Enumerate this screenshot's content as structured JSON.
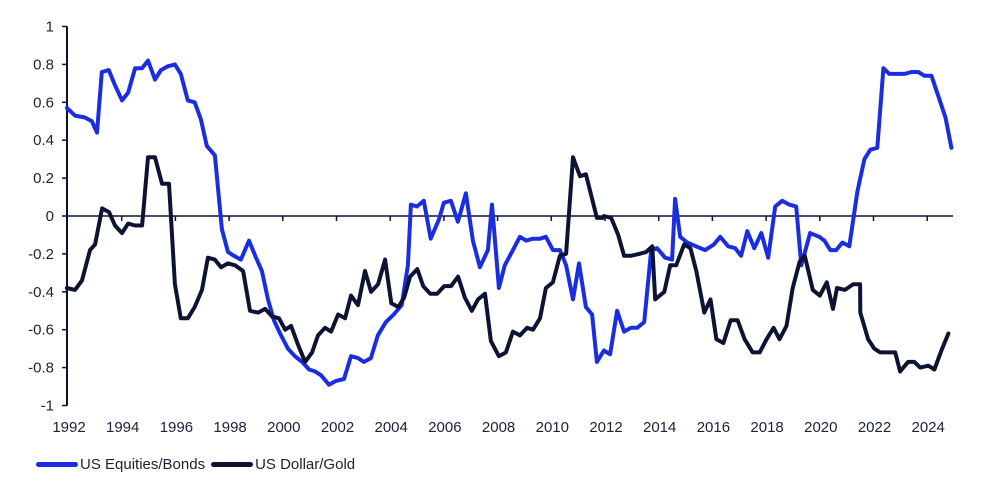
{
  "chart_data": {
    "type": "line",
    "title": "",
    "xlabel": "",
    "ylabel": "",
    "xlim": [
      1992,
      2025
    ],
    "ylim": [
      -1,
      1
    ],
    "yticks": [
      1,
      0.8,
      0.6,
      0.4,
      0.2,
      0,
      -0.2,
      -0.4,
      -0.6,
      -0.8,
      -1
    ],
    "ytick_labels": [
      "1",
      "0.8",
      "0.6",
      "0.4",
      "0.2",
      "0",
      "-0.2",
      "-0.4",
      "-0.6",
      "-0.8",
      "-1"
    ],
    "xtick_labels": [
      "1992",
      "1994",
      "1996",
      "1998",
      "2000",
      "2002",
      "2004",
      "2006",
      "2008",
      "2010",
      "2012",
      "2014",
      "2016",
      "2018",
      "2020",
      "2022",
      "2024"
    ],
    "xticks": [
      1992,
      1994,
      1996,
      1998,
      2000,
      2002,
      2004,
      2006,
      2008,
      2010,
      2012,
      2014,
      2016,
      2018,
      2020,
      2022,
      2024
    ],
    "grid": false,
    "zero_line": true,
    "legend_position": "bottom-left",
    "series": [
      {
        "name": "US Equities/Bonds",
        "color": "#1a2ee0",
        "points": [
          [
            1991.96,
            0.57
          ],
          [
            1992.26,
            0.53
          ],
          [
            1992.63,
            0.52
          ],
          [
            1992.89,
            0.5
          ],
          [
            1993.08,
            0.44
          ],
          [
            1993.26,
            0.76
          ],
          [
            1993.52,
            0.77
          ],
          [
            1993.75,
            0.69
          ],
          [
            1994.01,
            0.61
          ],
          [
            1994.24,
            0.65
          ],
          [
            1994.5,
            0.78
          ],
          [
            1994.76,
            0.78
          ],
          [
            1994.98,
            0.82
          ],
          [
            1995.24,
            0.72
          ],
          [
            1995.46,
            0.77
          ],
          [
            1995.72,
            0.79
          ],
          [
            1995.98,
            0.8
          ],
          [
            1996.2,
            0.75
          ],
          [
            1996.46,
            0.61
          ],
          [
            1996.72,
            0.6
          ],
          [
            1996.95,
            0.51
          ],
          [
            1997.17,
            0.37
          ],
          [
            1997.47,
            0.32
          ],
          [
            1997.73,
            -0.07
          ],
          [
            1997.96,
            -0.19
          ],
          [
            1998.18,
            -0.21
          ],
          [
            1998.44,
            -0.23
          ],
          [
            1998.74,
            -0.13
          ],
          [
            1999.0,
            -0.22
          ],
          [
            1999.22,
            -0.29
          ],
          [
            1999.45,
            -0.44
          ],
          [
            1999.67,
            -0.55
          ],
          [
            1999.9,
            -0.62
          ],
          [
            2000.19,
            -0.7
          ],
          [
            2000.45,
            -0.74
          ],
          [
            2000.72,
            -0.77
          ],
          [
            2000.98,
            -0.81
          ],
          [
            2001.2,
            -0.82
          ],
          [
            2001.42,
            -0.84
          ],
          [
            2001.72,
            -0.89
          ],
          [
            2001.98,
            -0.87
          ],
          [
            2002.28,
            -0.86
          ],
          [
            2002.54,
            -0.74
          ],
          [
            2002.8,
            -0.75
          ],
          [
            2003.02,
            -0.77
          ],
          [
            2003.28,
            -0.75
          ],
          [
            2003.54,
            -0.63
          ],
          [
            2003.84,
            -0.56
          ],
          [
            2004.13,
            -0.52
          ],
          [
            2004.43,
            -0.47
          ],
          [
            2004.66,
            -0.26
          ],
          [
            2004.77,
            0.06
          ],
          [
            2004.99,
            0.05
          ],
          [
            2005.25,
            0.08
          ],
          [
            2005.51,
            -0.12
          ],
          [
            2005.81,
            -0.02
          ],
          [
            2006.0,
            0.07
          ],
          [
            2006.26,
            0.08
          ],
          [
            2006.52,
            -0.03
          ],
          [
            2006.82,
            0.12
          ],
          [
            2007.08,
            -0.13
          ],
          [
            2007.34,
            -0.27
          ],
          [
            2007.64,
            -0.18
          ],
          [
            2007.79,
            0.06
          ],
          [
            2008.05,
            -0.38
          ],
          [
            2008.27,
            -0.26
          ],
          [
            2008.57,
            -0.18
          ],
          [
            2008.83,
            -0.11
          ],
          [
            2009.06,
            -0.13
          ],
          [
            2009.32,
            -0.12
          ],
          [
            2009.58,
            -0.12
          ],
          [
            2009.8,
            -0.11
          ],
          [
            2010.06,
            -0.18
          ],
          [
            2010.32,
            -0.18
          ],
          [
            2010.55,
            -0.26
          ],
          [
            2010.81,
            -0.44
          ],
          [
            2011.03,
            -0.25
          ],
          [
            2011.29,
            -0.48
          ],
          [
            2011.52,
            -0.52
          ],
          [
            2011.7,
            -0.77
          ],
          [
            2011.96,
            -0.71
          ],
          [
            2012.19,
            -0.73
          ],
          [
            2012.45,
            -0.5
          ],
          [
            2012.71,
            -0.61
          ],
          [
            2012.97,
            -0.59
          ],
          [
            2013.2,
            -0.59
          ],
          [
            2013.46,
            -0.56
          ],
          [
            2013.72,
            -0.18
          ],
          [
            2013.94,
            -0.17
          ],
          [
            2014.24,
            -0.22
          ],
          [
            2014.5,
            -0.23
          ],
          [
            2014.61,
            0.09
          ],
          [
            2014.8,
            -0.11
          ],
          [
            2015.06,
            -0.14
          ],
          [
            2015.39,
            -0.16
          ],
          [
            2015.73,
            -0.18
          ],
          [
            2016.06,
            -0.15
          ],
          [
            2016.29,
            -0.11
          ],
          [
            2016.59,
            -0.16
          ],
          [
            2016.85,
            -0.17
          ],
          [
            2017.07,
            -0.21
          ],
          [
            2017.3,
            -0.08
          ],
          [
            2017.56,
            -0.17
          ],
          [
            2017.82,
            -0.09
          ],
          [
            2018.08,
            -0.22
          ],
          [
            2018.34,
            0.05
          ],
          [
            2018.6,
            0.08
          ],
          [
            2018.86,
            0.06
          ],
          [
            2019.12,
            0.05
          ],
          [
            2019.31,
            -0.26
          ],
          [
            2019.64,
            -0.09
          ],
          [
            2019.98,
            -0.11
          ],
          [
            2020.17,
            -0.13
          ],
          [
            2020.39,
            -0.18
          ],
          [
            2020.61,
            -0.18
          ],
          [
            2020.84,
            -0.14
          ],
          [
            2021.1,
            -0.16
          ],
          [
            2021.4,
            0.13
          ],
          [
            2021.66,
            0.3
          ],
          [
            2021.88,
            0.35
          ],
          [
            2022.14,
            0.36
          ],
          [
            2022.37,
            0.78
          ],
          [
            2022.59,
            0.75
          ],
          [
            2022.85,
            0.75
          ],
          [
            2023.15,
            0.75
          ],
          [
            2023.41,
            0.76
          ],
          [
            2023.67,
            0.76
          ],
          [
            2023.9,
            0.74
          ],
          [
            2024.16,
            0.74
          ],
          [
            2024.42,
            0.63
          ],
          [
            2024.68,
            0.52
          ],
          [
            2024.9,
            0.36
          ]
        ]
      },
      {
        "name": "US Dollar/Gold",
        "color": "#0d1433",
        "points": [
          [
            1991.96,
            -0.38
          ],
          [
            1992.26,
            -0.39
          ],
          [
            1992.52,
            -0.34
          ],
          [
            1992.82,
            -0.18
          ],
          [
            1993.01,
            -0.15
          ],
          [
            1993.27,
            0.04
          ],
          [
            1993.53,
            0.02
          ],
          [
            1993.75,
            -0.05
          ],
          [
            1994.01,
            -0.09
          ],
          [
            1994.24,
            -0.04
          ],
          [
            1994.5,
            -0.05
          ],
          [
            1994.76,
            -0.05
          ],
          [
            1994.98,
            0.31
          ],
          [
            1995.24,
            0.31
          ],
          [
            1995.5,
            0.17
          ],
          [
            1995.76,
            0.17
          ],
          [
            1995.98,
            -0.36
          ],
          [
            1996.2,
            -0.54
          ],
          [
            1996.46,
            -0.54
          ],
          [
            1996.72,
            -0.48
          ],
          [
            1996.99,
            -0.39
          ],
          [
            1997.21,
            -0.22
          ],
          [
            1997.47,
            -0.23
          ],
          [
            1997.7,
            -0.27
          ],
          [
            1997.96,
            -0.25
          ],
          [
            1998.22,
            -0.26
          ],
          [
            1998.52,
            -0.29
          ],
          [
            1998.78,
            -0.5
          ],
          [
            1999.08,
            -0.51
          ],
          [
            1999.34,
            -0.49
          ],
          [
            1999.6,
            -0.53
          ],
          [
            1999.86,
            -0.54
          ],
          [
            2000.09,
            -0.6
          ],
          [
            2000.31,
            -0.58
          ],
          [
            2000.57,
            -0.68
          ],
          [
            2000.83,
            -0.77
          ],
          [
            2001.09,
            -0.72
          ],
          [
            2001.31,
            -0.63
          ],
          [
            2001.57,
            -0.59
          ],
          [
            2001.8,
            -0.61
          ],
          [
            2002.06,
            -0.52
          ],
          [
            2002.32,
            -0.54
          ],
          [
            2002.54,
            -0.42
          ],
          [
            2002.8,
            -0.47
          ],
          [
            2003.06,
            -0.29
          ],
          [
            2003.29,
            -0.4
          ],
          [
            2003.55,
            -0.36
          ],
          [
            2003.81,
            -0.23
          ],
          [
            2004.04,
            -0.46
          ],
          [
            2004.3,
            -0.48
          ],
          [
            2004.52,
            -0.43
          ],
          [
            2004.74,
            -0.32
          ],
          [
            2005.01,
            -0.28
          ],
          [
            2005.23,
            -0.37
          ],
          [
            2005.49,
            -0.41
          ],
          [
            2005.75,
            -0.41
          ],
          [
            2006.01,
            -0.37
          ],
          [
            2006.27,
            -0.37
          ],
          [
            2006.53,
            -0.32
          ],
          [
            2006.78,
            -0.43
          ],
          [
            2007.04,
            -0.5
          ],
          [
            2007.27,
            -0.44
          ],
          [
            2007.53,
            -0.41
          ],
          [
            2007.75,
            -0.66
          ],
          [
            2008.05,
            -0.74
          ],
          [
            2008.31,
            -0.72
          ],
          [
            2008.57,
            -0.61
          ],
          [
            2008.83,
            -0.63
          ],
          [
            2009.1,
            -0.59
          ],
          [
            2009.32,
            -0.6
          ],
          [
            2009.58,
            -0.54
          ],
          [
            2009.8,
            -0.38
          ],
          [
            2010.06,
            -0.35
          ],
          [
            2010.32,
            -0.21
          ],
          [
            2010.55,
            -0.2
          ],
          [
            2010.81,
            0.31
          ],
          [
            2011.07,
            0.21
          ],
          [
            2011.29,
            0.22
          ],
          [
            2011.93,
            -0.01
          ],
          [
            2011.7,
            -0.01
          ],
          [
            2011.96,
            0.0
          ],
          [
            2012.23,
            -0.01
          ],
          [
            2012.49,
            -0.1
          ],
          [
            2012.71,
            -0.21
          ],
          [
            2012.97,
            -0.21
          ],
          [
            2013.27,
            -0.2
          ],
          [
            2013.53,
            -0.19
          ],
          [
            2013.76,
            -0.16
          ],
          [
            2013.87,
            -0.44
          ],
          [
            2014.21,
            -0.4
          ],
          [
            2014.43,
            -0.26
          ],
          [
            2014.65,
            -0.26
          ],
          [
            2014.95,
            -0.15
          ],
          [
            2015.18,
            -0.17
          ],
          [
            2015.4,
            -0.29
          ],
          [
            2015.7,
            -0.51
          ],
          [
            2015.93,
            -0.44
          ],
          [
            2016.15,
            -0.65
          ],
          [
            2016.41,
            -0.67
          ],
          [
            2016.68,
            -0.55
          ],
          [
            2016.94,
            -0.55
          ],
          [
            2017.2,
            -0.65
          ],
          [
            2017.5,
            -0.72
          ],
          [
            2017.76,
            -0.72
          ],
          [
            2018.02,
            -0.65
          ],
          [
            2018.28,
            -0.59
          ],
          [
            2018.5,
            -0.65
          ],
          [
            2018.76,
            -0.58
          ],
          [
            2018.99,
            -0.38
          ],
          [
            2019.25,
            -0.24
          ],
          [
            2019.44,
            -0.21
          ],
          [
            2019.74,
            -0.39
          ],
          [
            2020.0,
            -0.42
          ],
          [
            2020.26,
            -0.35
          ],
          [
            2020.49,
            -0.49
          ],
          [
            2020.64,
            -0.38
          ],
          [
            2020.94,
            -0.39
          ],
          [
            2021.24,
            -0.36
          ],
          [
            2021.5,
            -0.36
          ],
          [
            2021.51,
            -0.51
          ],
          [
            2021.8,
            -0.65
          ],
          [
            2022.03,
            -0.7
          ],
          [
            2022.25,
            -0.72
          ],
          [
            2022.51,
            -0.72
          ],
          [
            2022.81,
            -0.72
          ],
          [
            2022.99,
            -0.82
          ],
          [
            2023.29,
            -0.77
          ],
          [
            2023.52,
            -0.77
          ],
          [
            2023.74,
            -0.8
          ],
          [
            2024.04,
            -0.79
          ],
          [
            2024.27,
            -0.81
          ],
          [
            2024.53,
            -0.71
          ],
          [
            2024.79,
            -0.62
          ]
        ]
      }
    ]
  },
  "legend": {
    "items": [
      {
        "label": "US Equities/Bonds",
        "color": "#1a2ee0"
      },
      {
        "label": "US Dollar/Gold",
        "color": "#0d1433"
      }
    ]
  }
}
